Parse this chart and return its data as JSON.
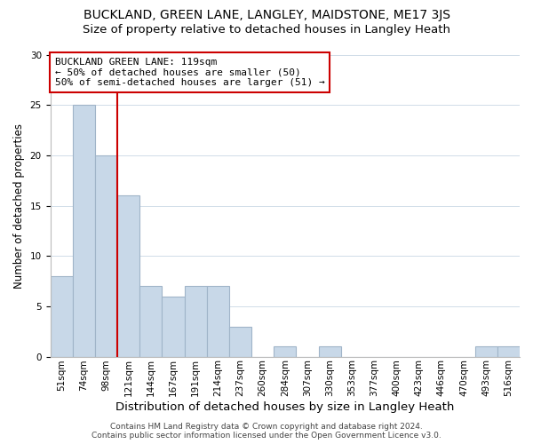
{
  "title": "BUCKLAND, GREEN LANE, LANGLEY, MAIDSTONE, ME17 3JS",
  "subtitle": "Size of property relative to detached houses in Langley Heath",
  "xlabel": "Distribution of detached houses by size in Langley Heath",
  "ylabel": "Number of detached properties",
  "bar_labels": [
    "51sqm",
    "74sqm",
    "98sqm",
    "121sqm",
    "144sqm",
    "167sqm",
    "191sqm",
    "214sqm",
    "237sqm",
    "260sqm",
    "284sqm",
    "307sqm",
    "330sqm",
    "353sqm",
    "377sqm",
    "400sqm",
    "423sqm",
    "446sqm",
    "470sqm",
    "493sqm",
    "516sqm"
  ],
  "bar_values": [
    8,
    25,
    20,
    16,
    7,
    6,
    7,
    7,
    3,
    0,
    1,
    0,
    1,
    0,
    0,
    0,
    0,
    0,
    0,
    1,
    1
  ],
  "bar_color": "#c8d8e8",
  "bar_edge_color": "#a0b4c8",
  "reference_line_label": "BUCKLAND GREEN LANE: 119sqm",
  "annotation_line1": "← 50% of detached houses are smaller (50)",
  "annotation_line2": "50% of semi-detached houses are larger (51) →",
  "annotation_box_color": "#ffffff",
  "annotation_box_edge": "#cc0000",
  "ref_line_color": "#cc0000",
  "ylim": [
    0,
    30
  ],
  "yticks": [
    0,
    5,
    10,
    15,
    20,
    25,
    30
  ],
  "footer_line1": "Contains HM Land Registry data © Crown copyright and database right 2024.",
  "footer_line2": "Contains public sector information licensed under the Open Government Licence v3.0.",
  "background_color": "#ffffff",
  "grid_color": "#d0dce8",
  "title_fontsize": 10,
  "subtitle_fontsize": 9.5,
  "xlabel_fontsize": 9.5,
  "ylabel_fontsize": 8.5,
  "tick_fontsize": 7.5,
  "annotation_fontsize": 8,
  "footer_fontsize": 6.5
}
